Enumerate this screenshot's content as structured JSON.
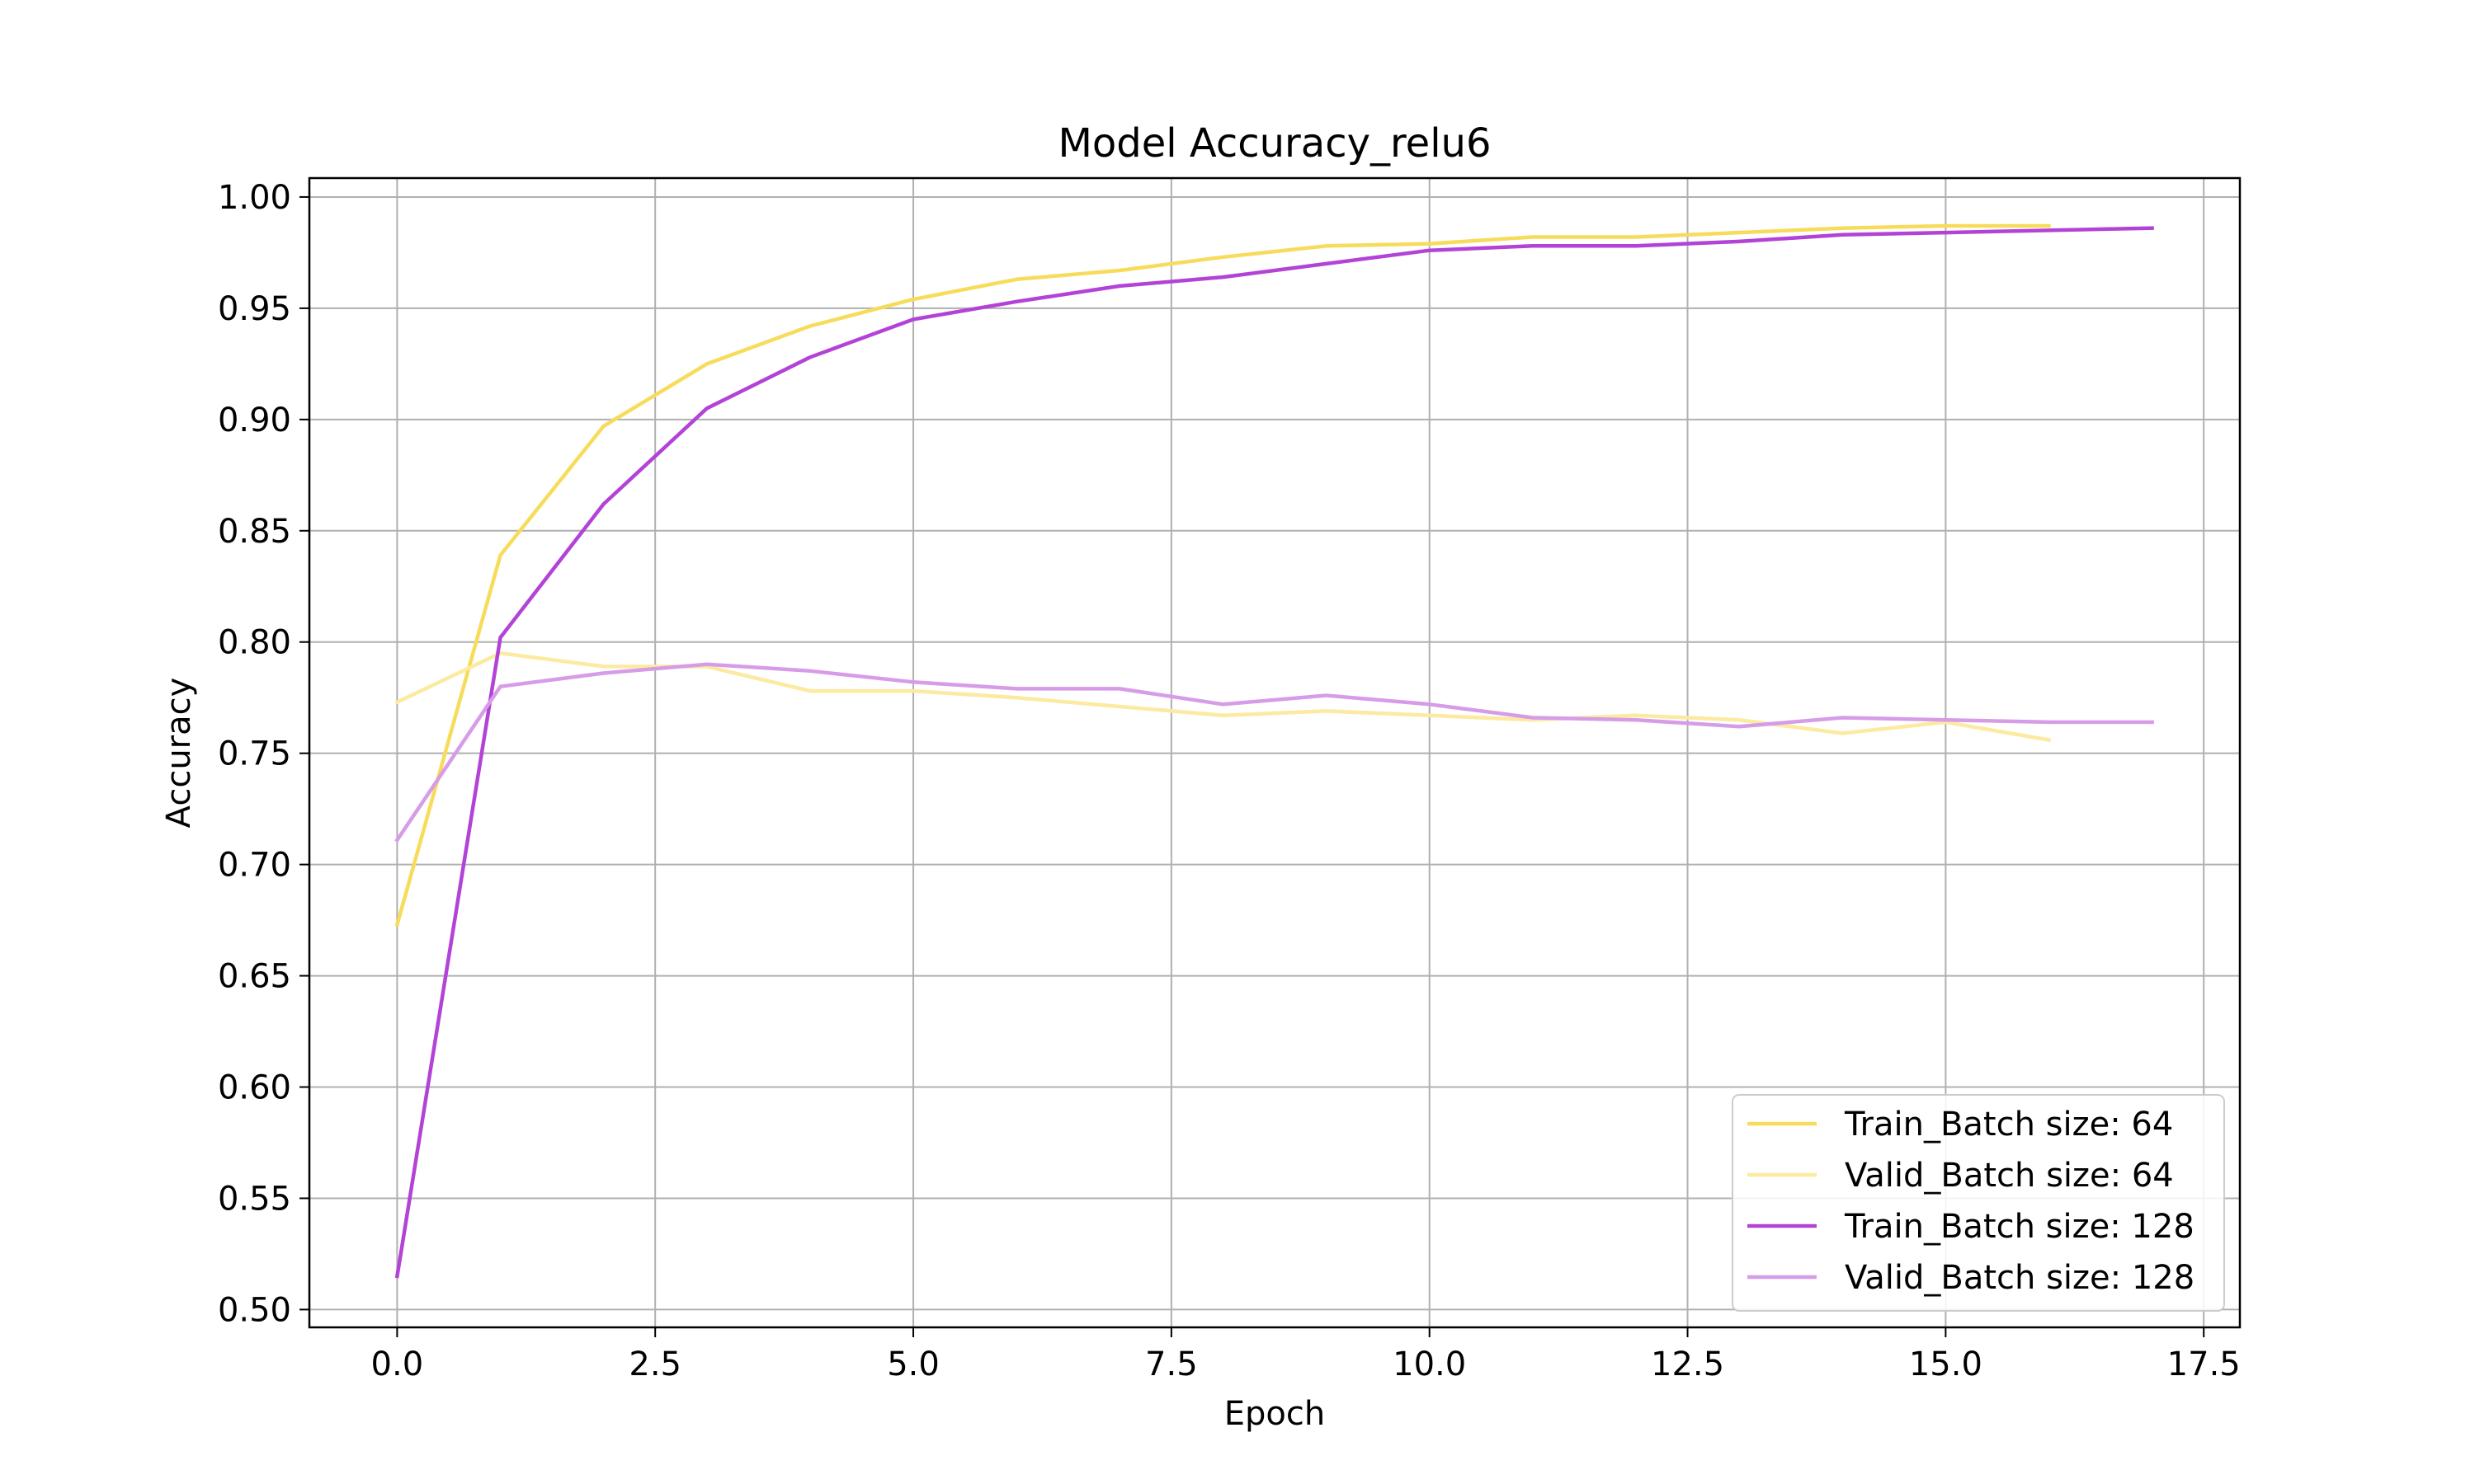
{
  "chart_data": {
    "type": "line",
    "title": "Model Accuracy_relu6",
    "xlabel": "Epoch",
    "ylabel": "Accuracy",
    "xlim": [
      -0.85,
      17.85
    ],
    "ylim": [
      0.492,
      1.0085
    ],
    "xticks": [
      0.0,
      2.5,
      5.0,
      7.5,
      10.0,
      12.5,
      15.0,
      17.5
    ],
    "xtick_labels": [
      "0.0",
      "2.5",
      "5.0",
      "7.5",
      "10.0",
      "12.5",
      "15.0",
      "17.5"
    ],
    "yticks": [
      0.5,
      0.55,
      0.6,
      0.65,
      0.7,
      0.75,
      0.8,
      0.85,
      0.9,
      0.95,
      1.0
    ],
    "ytick_labels": [
      "0.50",
      "0.55",
      "0.60",
      "0.65",
      "0.70",
      "0.75",
      "0.80",
      "0.85",
      "0.90",
      "0.95",
      "1.00"
    ],
    "grid": true,
    "legend_position": "lower-right",
    "series": [
      {
        "name": "Train_Batch size: 64",
        "color": "#f7dc5b",
        "x": [
          0,
          1,
          2,
          3,
          4,
          5,
          6,
          7,
          8,
          9,
          10,
          11,
          12,
          13,
          14,
          15,
          16
        ],
        "y": [
          0.673,
          0.839,
          0.897,
          0.925,
          0.942,
          0.954,
          0.963,
          0.967,
          0.973,
          0.978,
          0.979,
          0.982,
          0.982,
          0.984,
          0.986,
          0.987,
          0.987
        ]
      },
      {
        "name": "Valid_Batch size: 64",
        "color": "#fbeaa0",
        "x": [
          0,
          1,
          2,
          3,
          4,
          5,
          6,
          7,
          8,
          9,
          10,
          11,
          12,
          13,
          14,
          15,
          16
        ],
        "y": [
          0.773,
          0.795,
          0.789,
          0.789,
          0.778,
          0.778,
          0.775,
          0.771,
          0.767,
          0.769,
          0.767,
          0.765,
          0.767,
          0.765,
          0.759,
          0.764,
          0.756
        ]
      },
      {
        "name": "Train_Batch size: 128",
        "color": "#b343d7",
        "x": [
          0,
          1,
          2,
          3,
          4,
          5,
          6,
          7,
          8,
          9,
          10,
          11,
          12,
          13,
          14,
          15,
          16,
          17
        ],
        "y": [
          0.515,
          0.802,
          0.862,
          0.905,
          0.928,
          0.945,
          0.953,
          0.96,
          0.964,
          0.97,
          0.976,
          0.978,
          0.978,
          0.98,
          0.983,
          0.984,
          0.985,
          0.986
        ]
      },
      {
        "name": "Valid_Batch size: 128",
        "color": "#d69ce8",
        "x": [
          0,
          1,
          2,
          3,
          4,
          5,
          6,
          7,
          8,
          9,
          10,
          11,
          12,
          13,
          14,
          15,
          16,
          17
        ],
        "y": [
          0.711,
          0.78,
          0.786,
          0.79,
          0.787,
          0.782,
          0.779,
          0.779,
          0.772,
          0.776,
          0.772,
          0.766,
          0.765,
          0.762,
          0.766,
          0.765,
          0.764,
          0.764
        ]
      }
    ]
  }
}
